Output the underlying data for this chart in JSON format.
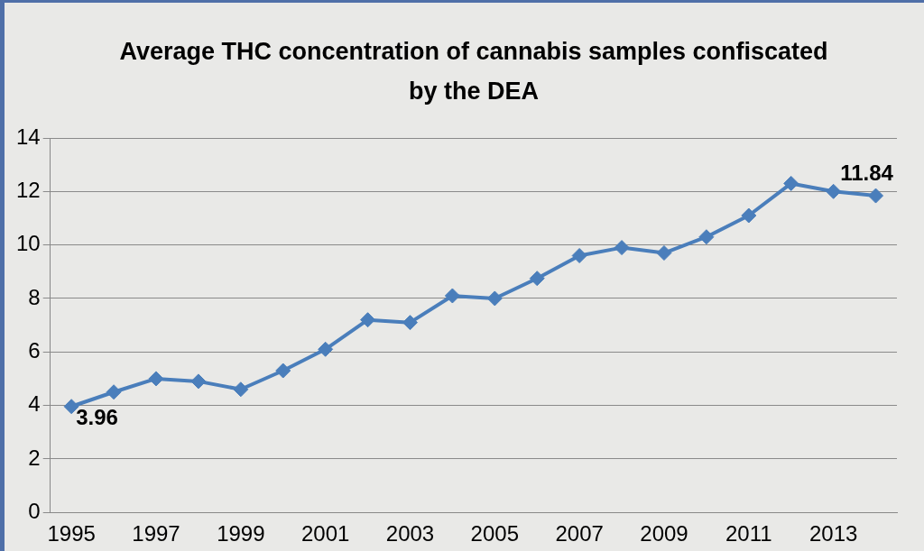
{
  "chart_data": {
    "type": "line",
    "title": "Average THC concentration of cannabis samples confiscated by the DEA",
    "categories": [
      "1995",
      null,
      "1997",
      null,
      "1999",
      null,
      "2001",
      null,
      "2003",
      null,
      "2005",
      null,
      "2007",
      null,
      "2009",
      null,
      "2011",
      null,
      "2013",
      null
    ],
    "series": [
      {
        "color": "#4a7ebb",
        "values": [
          3.96,
          4.5,
          5.0,
          4.9,
          4.6,
          5.3,
          6.1,
          7.2,
          7.1,
          8.1,
          8.0,
          8.75,
          9.6,
          9.9,
          9.7,
          10.3,
          11.1,
          12.3,
          12.0,
          11.84
        ],
        "value_labels": [
          "3.96",
          null,
          null,
          null,
          null,
          null,
          null,
          null,
          null,
          null,
          null,
          null,
          null,
          null,
          null,
          null,
          null,
          null,
          null,
          "11.84"
        ]
      }
    ],
    "ylim": [
      0,
      14
    ],
    "yticks": [
      0,
      2,
      4,
      6,
      8,
      10,
      12,
      14
    ],
    "grid": "y",
    "marker": "diamond",
    "line_style": "solid",
    "legend": false
  }
}
